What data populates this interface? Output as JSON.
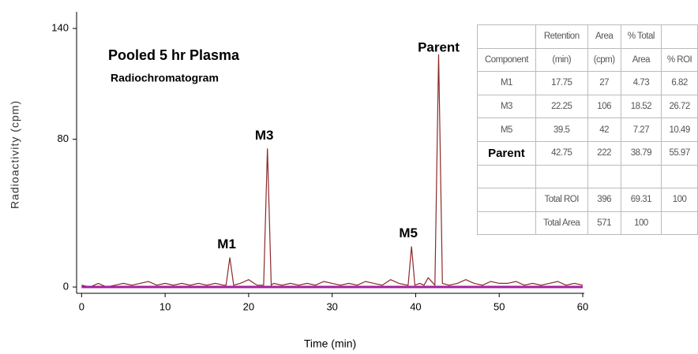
{
  "chart_data": {
    "type": "line",
    "title": "Pooled 5 hr Plasma",
    "subtitle": "Radiochromatogram",
    "x_label": "Time (min)",
    "y_label": "Radioactivity (cpm)",
    "xlim": [
      -0.6,
      60
    ],
    "ylim": [
      -3.4,
      149
    ],
    "xticks": [
      0,
      10,
      20,
      30,
      40,
      50,
      60
    ],
    "yticks": [
      0,
      80,
      140
    ],
    "series": [
      {
        "color": "#8b2a2a",
        "x": [
          0,
          1,
          2,
          3,
          4,
          5,
          6,
          7,
          8,
          9,
          10,
          11,
          12,
          13,
          14,
          15,
          16,
          17,
          17.3,
          17.75,
          18.2,
          19,
          20,
          21,
          21.8,
          22.25,
          22.7,
          23,
          24,
          25,
          26,
          27,
          28,
          29,
          30,
          31,
          32,
          33,
          34,
          35,
          36,
          37,
          38,
          39,
          39.1,
          39.5,
          39.9,
          40.5,
          41,
          41.5,
          42.3,
          42.75,
          43.2,
          44,
          45,
          46,
          47,
          48,
          49,
          50,
          51,
          52,
          53,
          54,
          55,
          56,
          57,
          58,
          59,
          60
        ],
        "values": [
          1,
          0,
          2,
          0,
          1,
          2,
          1,
          2,
          3,
          1,
          2,
          1,
          2,
          1,
          2,
          1,
          2,
          1,
          1,
          16,
          1,
          2,
          4,
          1,
          1,
          75,
          1,
          2,
          1,
          2,
          1,
          2,
          1,
          3,
          2,
          1,
          2,
          1,
          3,
          2,
          1,
          4,
          2,
          1,
          1,
          22,
          1,
          2,
          1,
          5,
          1,
          126,
          2,
          1,
          2,
          4,
          2,
          1,
          3,
          2,
          2,
          3,
          1,
          2,
          1,
          2,
          3,
          1,
          2,
          1
        ]
      },
      {
        "color": "#a020a0",
        "x": [
          0,
          60
        ],
        "values": [
          0,
          0
        ]
      }
    ],
    "annotations": [
      {
        "text": "M1",
        "x": 17.75,
        "y": 16
      },
      {
        "text": "M3",
        "x": 22.25,
        "y": 75
      },
      {
        "text": "M5",
        "x": 39.5,
        "y": 22
      },
      {
        "text": "Parent",
        "x": 42.75,
        "y": 126
      }
    ]
  },
  "table": {
    "rows": [
      [
        null,
        "Retention",
        "Area",
        "% Total",
        null
      ],
      [
        "Component",
        "(min)",
        "(cpm)",
        "Area",
        "% ROI"
      ],
      [
        "M1",
        "17.75",
        "27",
        "4.73",
        "6.82"
      ],
      [
        "M3",
        "22.25",
        "106",
        "18.52",
        "26.72"
      ],
      [
        "M5",
        "39.5",
        "42",
        "7.27",
        "10.49"
      ],
      [
        "Parent",
        "42.75",
        "222",
        "38.79",
        "55.97"
      ],
      [
        null,
        null,
        null,
        null,
        null
      ],
      [
        null,
        "Total ROI",
        "396",
        "69.31",
        "100"
      ],
      [
        null,
        "Total Area",
        "571",
        "100",
        null
      ]
    ]
  }
}
